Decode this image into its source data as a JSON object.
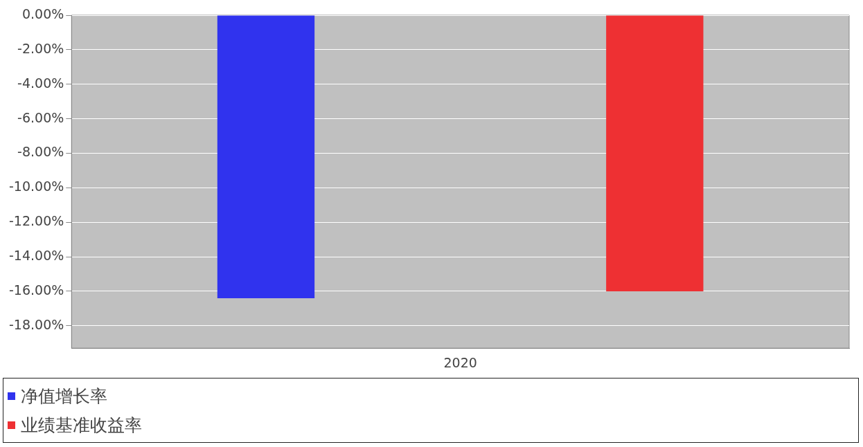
{
  "chart_data": {
    "type": "bar",
    "categories": [
      "2020"
    ],
    "series": [
      {
        "name": "净值增长率",
        "color": "#3033ee",
        "values": [
          -16.4
        ]
      },
      {
        "name": "业绩基准收益率",
        "color": "#ee3033",
        "values": [
          -16.0
        ]
      }
    ],
    "ylim": [
      -19.3,
      0
    ],
    "yticks": [
      {
        "value": 0,
        "label": "0.00%"
      },
      {
        "value": -2,
        "label": "-2.00%"
      },
      {
        "value": -4,
        "label": "-4.00%"
      },
      {
        "value": -6,
        "label": "-6.00%"
      },
      {
        "value": -8,
        "label": "-8.00%"
      },
      {
        "value": -10,
        "label": "-10.00%"
      },
      {
        "value": -12,
        "label": "-12.00%"
      },
      {
        "value": -14,
        "label": "-14.00%"
      },
      {
        "value": -16,
        "label": "-16.00%"
      },
      {
        "value": -18,
        "label": "-18.00%"
      }
    ],
    "grid": "y",
    "legend": "bottom"
  }
}
